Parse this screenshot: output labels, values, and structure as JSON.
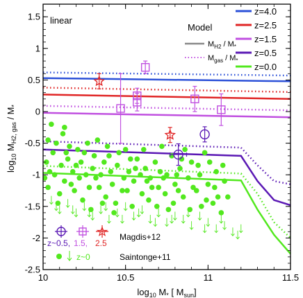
{
  "chart_data": {
    "type": "line",
    "corner_label": "linear",
    "xlabel_main": "log",
    "xlabel_sub": "10",
    "xlabel_rest": " M",
    "xlabel_star": "*",
    "xlabel_bracket_open": " [ M",
    "xlabel_bracket_sub": "sun",
    "xlabel_bracket_close": "]",
    "ylabel_main": "log",
    "ylabel_sub1": "10",
    "ylabel_mid": " M",
    "ylabel_sub2": "H2, gas",
    "ylabel_rest": " / M",
    "ylabel_star": "*",
    "xlim": [
      10.0,
      11.5
    ],
    "ylim": [
      -2.5,
      1.7
    ],
    "x_ticks": [
      {
        "value": 10.0,
        "label": "10"
      },
      {
        "value": 10.5,
        "label": "10.5"
      },
      {
        "value": 11.0,
        "label": "11"
      },
      {
        "value": 11.5,
        "label": "11.5"
      }
    ],
    "y_ticks": [
      {
        "value": -2.5,
        "label": "-2.5"
      },
      {
        "value": -2.0,
        "label": "-2"
      },
      {
        "value": -1.5,
        "label": "-1.5"
      },
      {
        "value": -1.0,
        "label": "-1"
      },
      {
        "value": -0.5,
        "label": "-0.5"
      },
      {
        "value": 0.0,
        "label": "0"
      },
      {
        "value": 0.5,
        "label": "0.5"
      },
      {
        "value": 1.0,
        "label": "1"
      },
      {
        "value": 1.5,
        "label": "1.5"
      }
    ],
    "model_legend": {
      "title": "Model",
      "solid_prefix": "M",
      "solid_sub": "H2",
      "solid_rest": " / M",
      "dotted_prefix": "M",
      "dotted_sub": "gas",
      "dotted_rest": " / M",
      "star": "*"
    },
    "series": [
      {
        "name": "z=4.0",
        "color": "#2b50d8",
        "solid": [
          [
            10.0,
            0.53
          ],
          [
            11.5,
            0.48
          ]
        ],
        "dotted": [
          [
            10.0,
            0.62
          ],
          [
            11.5,
            0.57
          ]
        ]
      },
      {
        "name": "z=2.5",
        "color": "#e02424",
        "solid": [
          [
            10.0,
            0.27
          ],
          [
            11.5,
            0.2
          ]
        ],
        "dotted": [
          [
            10.0,
            0.38
          ],
          [
            11.5,
            0.31
          ]
        ]
      },
      {
        "name": "z=1.5",
        "color": "#c04fe0",
        "solid": [
          [
            10.0,
            -0.02
          ],
          [
            11.5,
            -0.09
          ]
        ],
        "dotted": [
          [
            10.0,
            0.09
          ],
          [
            11.5,
            0.02
          ]
        ]
      },
      {
        "name": "z=0.5",
        "color": "#5a18b4",
        "solid": [
          [
            10.0,
            -0.6
          ],
          [
            11.2,
            -0.7
          ],
          [
            11.3,
            -1.1
          ],
          [
            11.4,
            -1.4
          ],
          [
            11.5,
            -1.48
          ]
        ],
        "dotted": [
          [
            10.0,
            -0.47
          ],
          [
            11.2,
            -0.57
          ],
          [
            11.3,
            -0.85
          ],
          [
            11.4,
            -1.1
          ],
          [
            11.5,
            -1.15
          ]
        ]
      },
      {
        "name": "z=0.0",
        "color": "#52e81e",
        "solid": [
          [
            10.0,
            -0.97
          ],
          [
            11.2,
            -1.09
          ],
          [
            11.3,
            -1.55
          ],
          [
            11.4,
            -1.95
          ],
          [
            11.5,
            -2.25
          ]
        ],
        "dotted": [
          [
            10.0,
            -0.86
          ],
          [
            11.2,
            -0.98
          ],
          [
            11.3,
            -1.3
          ],
          [
            11.4,
            -1.75
          ],
          [
            11.5,
            -2.0
          ]
        ]
      }
    ],
    "magdis_z05": [
      {
        "x": 10.82,
        "y": -0.68,
        "yerr": 0.17,
        "xerr": 0.05
      },
      {
        "x": 10.98,
        "y": -0.36,
        "yerr": 0.12,
        "xerr": 0.0
      }
    ],
    "magdis_z15": [
      {
        "x": 10.62,
        "y": 0.7,
        "yerr": 0.1
      },
      {
        "x": 10.57,
        "y": 0.15,
        "yerr": 0.14
      },
      {
        "x": 10.57,
        "y": 0.25,
        "yerr": 0.12
      },
      {
        "x": 10.47,
        "y": 0.05,
        "yerr": 0.55
      },
      {
        "x": 10.92,
        "y": 0.2,
        "yerr": 0.2
      },
      {
        "x": 11.08,
        "y": 0.03,
        "yerr": 0.25
      }
    ],
    "magdis_z25": [
      {
        "x": 10.34,
        "y": 0.48,
        "yerr": 0.12
      },
      {
        "x": 10.77,
        "y": -0.37,
        "yerr": 0.12
      }
    ],
    "saintonge_detections": [
      [
        10.05,
        -0.2
      ],
      [
        10.08,
        -0.5
      ],
      [
        10.02,
        -0.8
      ],
      [
        10.12,
        -0.35
      ],
      [
        10.15,
        -0.75
      ],
      [
        10.18,
        -0.95
      ],
      [
        10.03,
        -1.2
      ],
      [
        10.07,
        -1.0
      ],
      [
        10.1,
        -1.3
      ],
      [
        10.13,
        -1.1
      ],
      [
        10.16,
        -0.55
      ],
      [
        10.2,
        -0.85
      ],
      [
        10.22,
        -1.05
      ],
      [
        10.25,
        -0.65
      ],
      [
        10.28,
        -1.2
      ],
      [
        10.3,
        -0.9
      ],
      [
        10.33,
        -0.45
      ],
      [
        10.35,
        -1.0
      ],
      [
        10.38,
        -1.35
      ],
      [
        10.4,
        -0.7
      ],
      [
        10.42,
        -1.15
      ],
      [
        10.45,
        -0.85
      ],
      [
        10.48,
        -1.25
      ],
      [
        10.5,
        -0.6
      ],
      [
        10.52,
        -0.95
      ],
      [
        10.55,
        -1.1
      ],
      [
        10.57,
        -0.75
      ],
      [
        10.6,
        -1.3
      ],
      [
        10.62,
        -0.9
      ],
      [
        10.65,
        -1.05
      ],
      [
        10.68,
        -0.8
      ],
      [
        10.7,
        -1.2
      ],
      [
        10.72,
        -0.55
      ],
      [
        10.75,
        -1.0
      ],
      [
        10.78,
        -0.7
      ],
      [
        10.8,
        -1.15
      ],
      [
        10.83,
        -0.9
      ],
      [
        10.85,
        -1.35
      ],
      [
        10.88,
        -1.05
      ],
      [
        10.9,
        -0.8
      ],
      [
        10.93,
        -1.25
      ],
      [
        10.95,
        -1.0
      ],
      [
        10.98,
        -0.65
      ],
      [
        11.0,
        -1.15
      ],
      [
        11.03,
        -1.45
      ],
      [
        11.05,
        -0.95
      ],
      [
        11.08,
        -1.6
      ],
      [
        11.1,
        -1.1
      ],
      [
        10.04,
        -0.95
      ],
      [
        10.09,
        -1.45
      ],
      [
        10.14,
        -0.65
      ],
      [
        10.19,
        -1.25
      ],
      [
        10.24,
        -1.4
      ],
      [
        10.29,
        -1.55
      ],
      [
        10.34,
        -1.2
      ],
      [
        10.39,
        -0.55
      ],
      [
        10.44,
        -1.45
      ],
      [
        10.49,
        -1.05
      ],
      [
        10.54,
        -1.5
      ],
      [
        10.59,
        -1.0
      ],
      [
        10.64,
        -1.4
      ],
      [
        10.69,
        -1.5
      ],
      [
        10.74,
        -1.3
      ],
      [
        10.79,
        -1.45
      ],
      [
        10.84,
        -0.75
      ],
      [
        10.89,
        -1.55
      ],
      [
        10.94,
        -0.85
      ],
      [
        10.99,
        -1.4
      ],
      [
        11.04,
        -1.2
      ],
      [
        11.09,
        -0.85
      ],
      [
        11.12,
        -1.35
      ],
      [
        10.06,
        -0.65
      ],
      [
        10.11,
        -0.85
      ],
      [
        10.17,
        -1.15
      ],
      [
        10.23,
        -0.8
      ],
      [
        10.27,
        -0.5
      ],
      [
        10.32,
        -1.05
      ],
      [
        10.37,
        -0.8
      ],
      [
        10.41,
        -0.95
      ],
      [
        10.46,
        -0.65
      ],
      [
        10.51,
        -1.25
      ],
      [
        10.56,
        -0.9
      ],
      [
        10.61,
        -0.6
      ],
      [
        10.66,
        -1.2
      ],
      [
        10.71,
        -0.95
      ],
      [
        10.76,
        -1.55
      ],
      [
        10.81,
        -1.0
      ],
      [
        10.86,
        -0.6
      ],
      [
        10.91,
        -1.2
      ],
      [
        10.96,
        -1.5
      ],
      [
        11.01,
        -0.8
      ],
      [
        11.06,
        -1.35
      ],
      [
        10.01,
        -1.05
      ],
      [
        10.03,
        -0.45
      ],
      [
        10.13,
        -0.25
      ],
      [
        10.21,
        -0.6
      ],
      [
        10.26,
        -1.0
      ],
      [
        10.31,
        -0.7
      ],
      [
        10.36,
        -1.45
      ],
      [
        10.43,
        -1.6
      ],
      [
        10.53,
        -0.75
      ],
      [
        10.63,
        -1.1
      ],
      [
        10.73,
        -1.05
      ],
      [
        10.82,
        -1.25
      ]
    ],
    "saintonge_upper_limits": [
      [
        10.05,
        -1.4
      ],
      [
        10.1,
        -1.55
      ],
      [
        10.15,
        -1.45
      ],
      [
        10.2,
        -1.6
      ],
      [
        10.25,
        -1.5
      ],
      [
        10.3,
        -1.65
      ],
      [
        10.35,
        -1.55
      ],
      [
        10.4,
        -1.7
      ],
      [
        10.45,
        -1.6
      ],
      [
        10.5,
        -1.5
      ],
      [
        10.55,
        -1.65
      ],
      [
        10.6,
        -1.55
      ],
      [
        10.65,
        -1.7
      ],
      [
        10.7,
        -1.6
      ],
      [
        10.75,
        -1.75
      ],
      [
        10.8,
        -1.65
      ],
      [
        10.85,
        -1.7
      ],
      [
        10.9,
        -1.8
      ],
      [
        10.95,
        -1.65
      ],
      [
        11.0,
        -1.75
      ],
      [
        11.05,
        -1.85
      ],
      [
        11.1,
        -1.8
      ],
      [
        11.15,
        -1.9
      ],
      [
        11.2,
        -1.85
      ],
      [
        10.08,
        -1.5
      ],
      [
        10.18,
        -1.55
      ],
      [
        10.28,
        -1.6
      ],
      [
        10.38,
        -1.5
      ],
      [
        10.48,
        -1.7
      ],
      [
        10.58,
        -1.6
      ],
      [
        10.68,
        -1.75
      ],
      [
        10.78,
        -1.7
      ],
      [
        10.88,
        -1.6
      ],
      [
        10.98,
        -1.85
      ],
      [
        11.08,
        -1.7
      ],
      [
        11.18,
        -1.95
      ]
    ],
    "obs_legend": {
      "z05_label": "z~0.5,",
      "z15_label": "1.5,",
      "z25_label": "2.5",
      "magdis_ref": "Magdis+12",
      "saintonge_label": "z~0",
      "saintonge_ref": "Saintonge+11"
    },
    "colors": {
      "magdis_z05": "#5a18b4",
      "magdis_z15": "#c04fe0",
      "magdis_z25": "#e02424",
      "saintonge": "#52e81e",
      "model_legend_line": "#888888"
    }
  }
}
